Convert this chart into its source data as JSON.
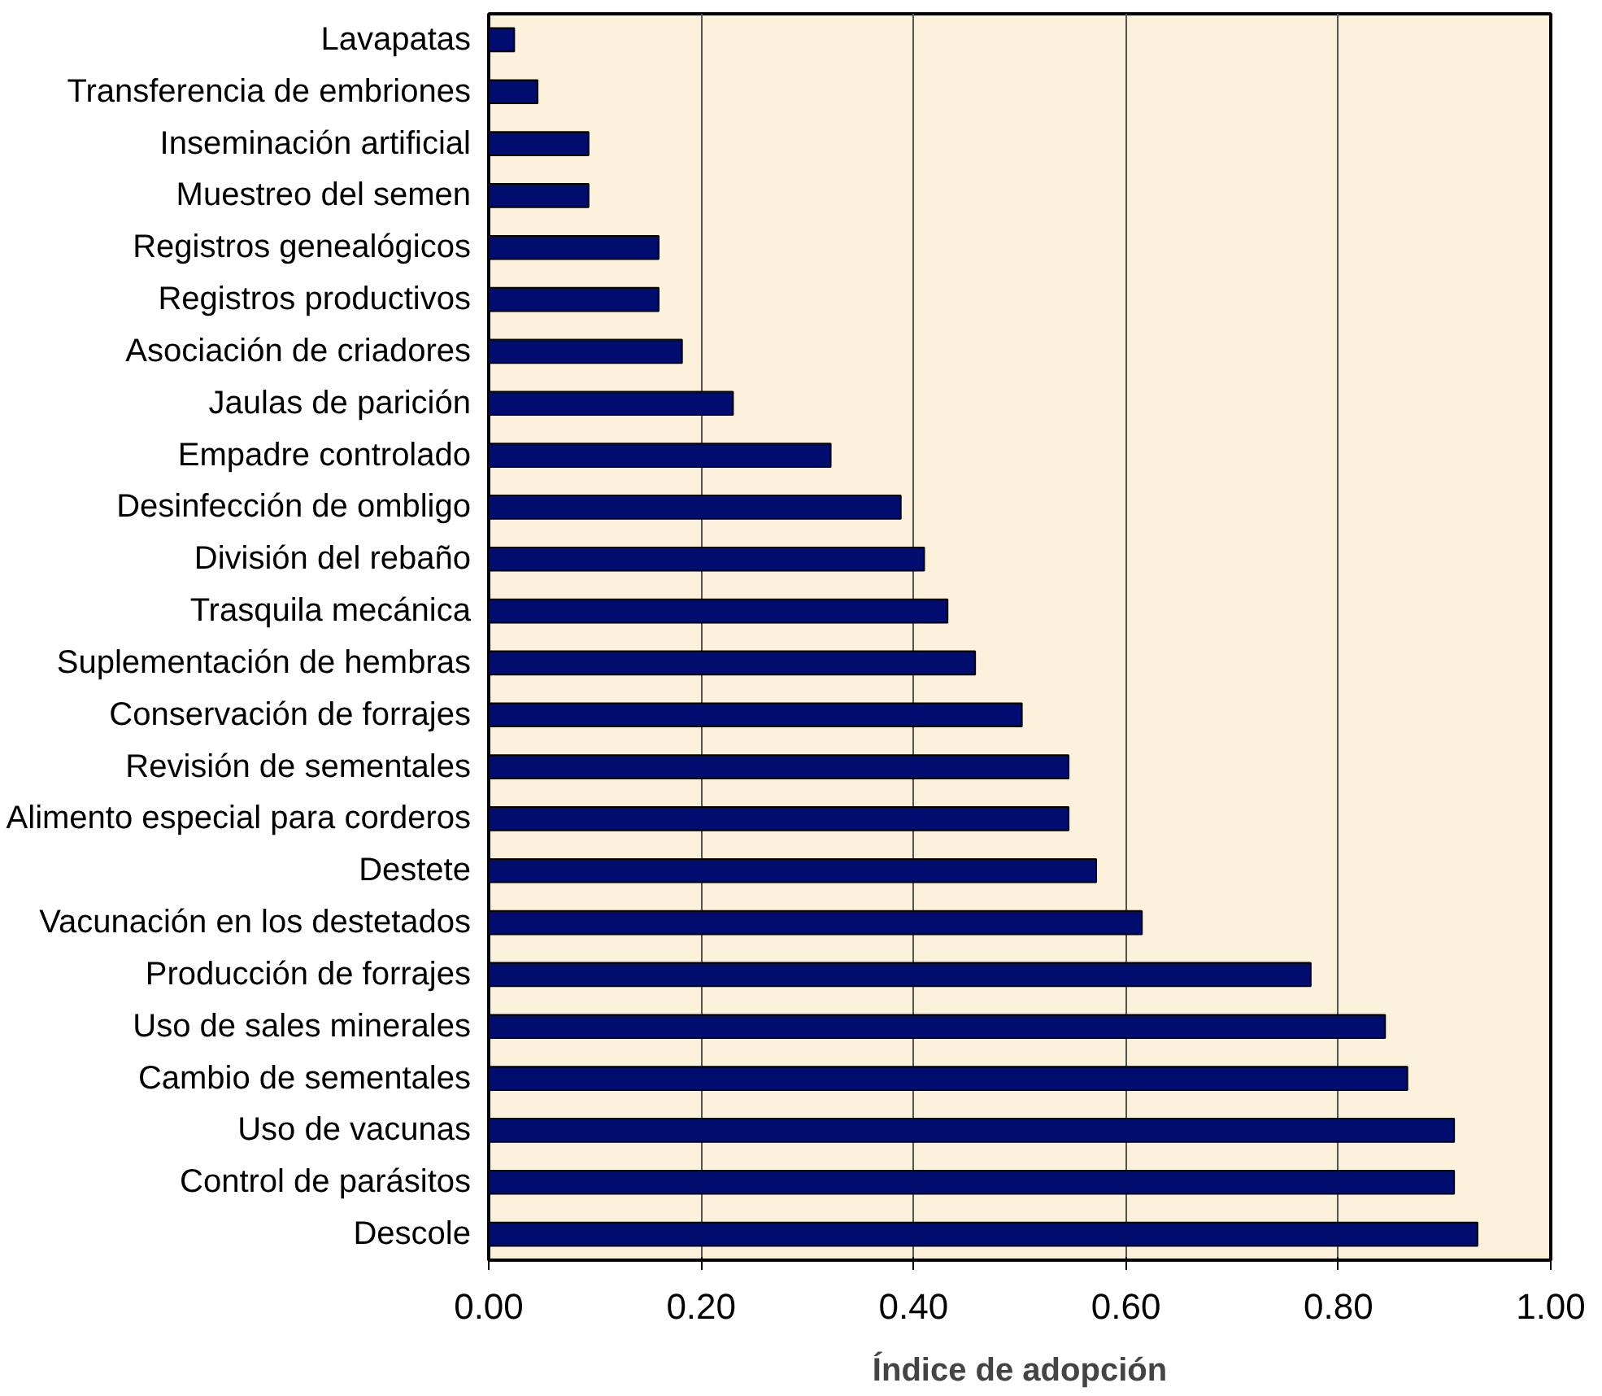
{
  "chart_data": {
    "type": "bar",
    "orientation": "horizontal",
    "xlabel": "Índice de adopción",
    "categories": [
      "Lavapatas",
      "Transferencia de embriones",
      "Inseminación artificial",
      "Muestreo del semen",
      "Registros genealógicos",
      "Registros productivos",
      "Asociación de criadores",
      "Jaulas de parición",
      "Empadre controlado",
      "Desinfección de ombligo",
      "División del rebaño",
      "Trasquila mecánica",
      "Suplementación de hembras",
      "Conservación de forrajes",
      "Revisión de sementales",
      "Alimento especial para corderos",
      "Destete",
      "Vacunación en los destetados",
      "Producción de forrajes",
      "Uso de sales minerales",
      "Cambio de sementales",
      "Uso de vacunas",
      "Control de parásitos",
      "Descole"
    ],
    "values": [
      0.024,
      0.046,
      0.094,
      0.094,
      0.16,
      0.16,
      0.182,
      0.23,
      0.322,
      0.388,
      0.41,
      0.432,
      0.458,
      0.502,
      0.546,
      0.546,
      0.572,
      0.615,
      0.774,
      0.844,
      0.865,
      0.909,
      0.909,
      0.931
    ],
    "color": "#000c6e",
    "xlim": [
      0,
      1
    ],
    "xticks": [
      {
        "value": 0,
        "label": "0.00"
      },
      {
        "value": 0.2,
        "label": "0.20"
      },
      {
        "value": 0.4,
        "label": "0.40"
      },
      {
        "value": 0.6,
        "label": "0.60"
      },
      {
        "value": 0.8,
        "label": "0.80"
      },
      {
        "value": 1,
        "label": "1.00"
      }
    ],
    "grid": "x"
  }
}
